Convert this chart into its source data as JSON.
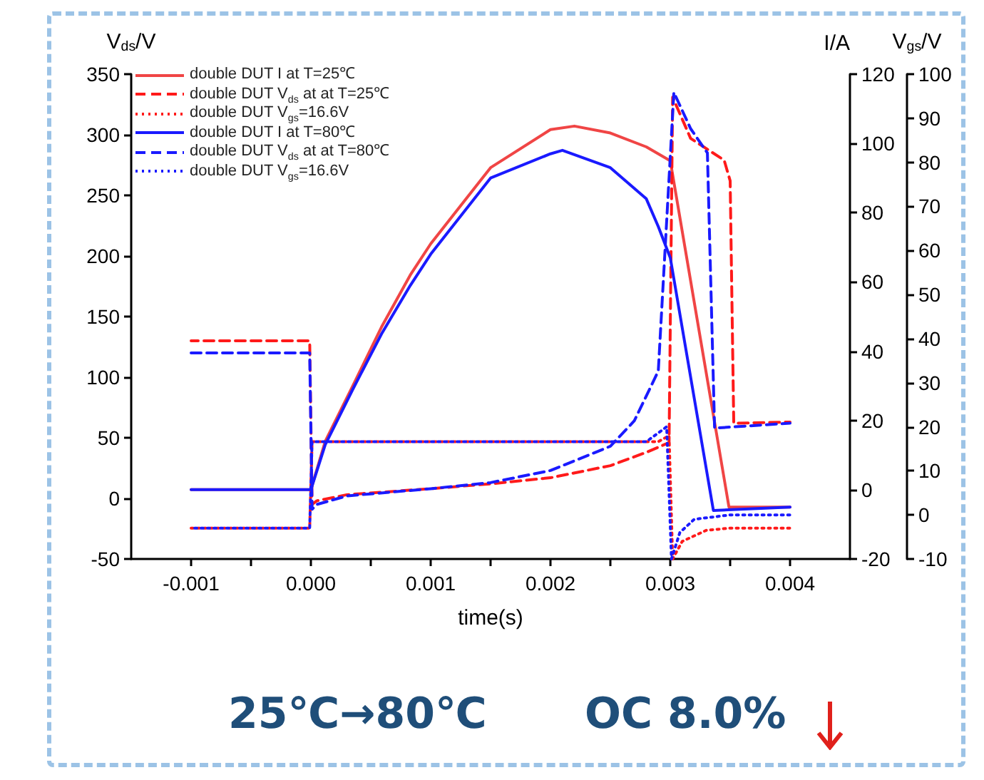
{
  "chart_data": {
    "type": "line",
    "xlabel": "time(s)",
    "ylabel": "V$_{ds}$/V",
    "y2label": "I/A",
    "y3label": "V$_{gs}$/V",
    "xlim": [
      -0.0015,
      0.0045
    ],
    "xticks": [
      {
        "value": -0.001,
        "label": "-0.001"
      },
      {
        "value": -0.0005,
        "label": null
      },
      {
        "value": 0,
        "label": "0.000"
      },
      {
        "value": 0.0005,
        "label": null
      },
      {
        "value": 0.001,
        "label": "0.001"
      },
      {
        "value": 0.0015,
        "label": null
      },
      {
        "value": 0.002,
        "label": "0.002"
      },
      {
        "value": 0.0025,
        "label": null
      },
      {
        "value": 0.003,
        "label": "0.003"
      },
      {
        "value": 0.0035,
        "label": null
      },
      {
        "value": 0.004,
        "label": "0.004"
      }
    ],
    "ylim": [
      -50,
      350
    ],
    "yticks": [
      -50,
      0,
      50,
      100,
      150,
      200,
      250,
      300,
      350
    ],
    "y2lim": [
      -20,
      120
    ],
    "y2ticks": [
      -20,
      0,
      20,
      40,
      60,
      80,
      100,
      120
    ],
    "y3lim": [
      -10,
      100
    ],
    "y3ticks": [
      -10,
      0,
      10,
      20,
      30,
      40,
      50,
      60,
      70,
      80,
      90,
      100
    ],
    "grid": false,
    "legend": "top left",
    "marker": "none",
    "annotations": [
      "25℃→80℃",
      "OC 8.0%"
    ],
    "series": [
      {
        "name": "double DUT I at T=25℃",
        "color": "#f04545",
        "axis": "y2",
        "line_style": "solid",
        "x": [
          -0.001,
          0,
          0.00012,
          0.00035,
          0.00059,
          0.00083,
          0.001,
          0.0015,
          0.002,
          0.0022,
          0.0025,
          0.0028,
          0.003,
          0.00349,
          0.004
        ],
        "values": [
          0,
          0,
          14,
          30,
          47,
          62,
          71,
          93,
          104,
          105,
          103,
          99,
          95,
          -5,
          -5
        ]
      },
      {
        "name": "double DUT V$_{ds}$ at at T=25℃",
        "color": "#ff1a1a",
        "line_style": "dashed",
        "x": [
          -0.001,
          -1e-05,
          1e-05,
          5e-05,
          0.0003,
          0.001,
          0.0015,
          0.002,
          0.0025,
          0.0028,
          0.00299,
          0.00302,
          0.00317,
          0.00345,
          0.0035,
          0.00353,
          0.004
        ],
        "values": [
          130,
          130,
          -5,
          -2,
          3,
          8,
          12,
          17,
          27,
          38,
          46,
          331,
          297,
          279,
          262,
          62,
          63
        ]
      },
      {
        "name": "double DUT V$_{gs}$=16.6V",
        "color": "#ff1a1a",
        "axis": "y3",
        "line_style": "dotted",
        "x": [
          -0.001,
          -1e-05,
          1e-05,
          0.0029,
          0.00299,
          0.00302,
          0.0031,
          0.0033,
          0.0035,
          0.004
        ],
        "values": [
          -3,
          -3,
          16.6,
          16.6,
          18,
          -10,
          -6,
          -3.5,
          -3,
          -3
        ]
      },
      {
        "name": "double DUT I at T=80℃",
        "color": "#1a1aff",
        "axis": "y2",
        "line_style": "solid",
        "x": [
          -0.001,
          0,
          0.00012,
          0.00035,
          0.00059,
          0.00083,
          0.001,
          0.0015,
          0.002,
          0.0021,
          0.0025,
          0.0028,
          0.0029,
          0.003,
          0.00336,
          0.004
        ],
        "values": [
          0,
          0,
          13,
          29,
          45,
          59,
          68,
          90,
          97,
          98,
          93,
          84,
          76,
          67,
          -6,
          -5
        ]
      },
      {
        "name": "double DUT V$_{ds}$ at at T=80℃",
        "color": "#1a1aff",
        "line_style": "dashed",
        "x": [
          -0.001,
          -1e-05,
          1e-05,
          5e-05,
          0.0003,
          0.001,
          0.0015,
          0.002,
          0.0025,
          0.0027,
          0.0029,
          0.00303,
          0.00317,
          0.00331,
          0.00337,
          0.004
        ],
        "values": [
          120,
          120,
          -9,
          -5,
          2,
          8,
          13,
          23,
          43,
          64,
          105,
          335,
          305,
          285,
          58,
          62
        ]
      },
      {
        "name": "double DUT V$_{gs}$=16.6V",
        "color": "#1a1aff",
        "axis": "y3",
        "line_style": "dotted",
        "x": [
          -0.001,
          -1e-05,
          1e-05,
          0.0028,
          0.00297,
          0.00301,
          0.00308,
          0.0032,
          0.0035,
          0.004
        ],
        "values": [
          -3,
          -3,
          16.6,
          16.6,
          20,
          -10,
          -4,
          -1,
          0,
          0
        ]
      }
    ]
  }
}
